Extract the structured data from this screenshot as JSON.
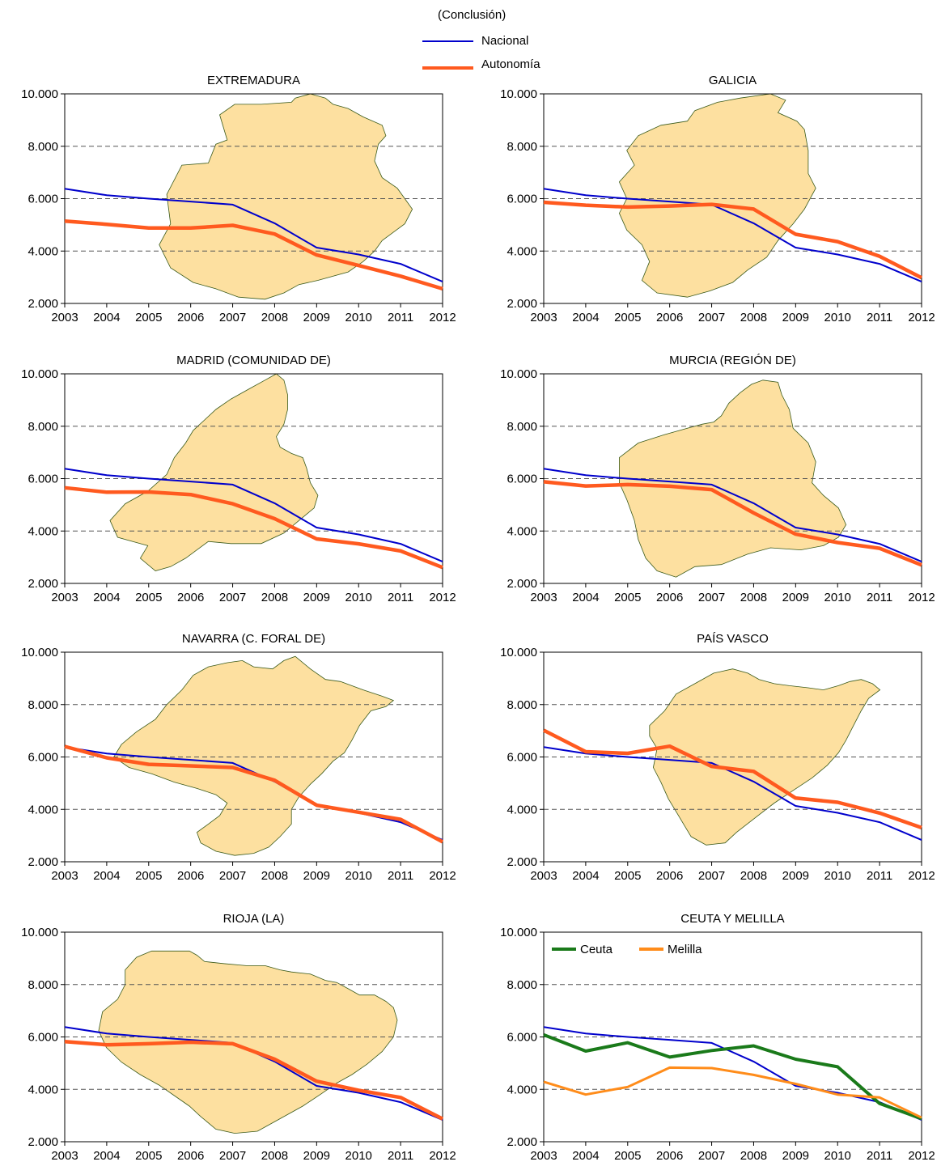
{
  "subtitle": "(Conclusión)",
  "legend": {
    "national_label": "Nacional",
    "regional_label": "Autonomía"
  },
  "colors": {
    "national": "#0000cc",
    "regional": "#ff5a1f",
    "ceuta": "#1a7a1a",
    "melilla": "#ff8c1a",
    "map_fill": "#fde0a0",
    "map_stroke": "#3a5a1a",
    "grid": "#555555"
  },
  "chart_data": [
    {
      "type": "line",
      "title": "EXTREMADURA",
      "categories": [
        "2003",
        "2004",
        "2005",
        "2006",
        "2007",
        "2008",
        "2009",
        "2010",
        "2011",
        "2012"
      ],
      "ylim": [
        2000,
        10000
      ],
      "yticks": [
        "2.000",
        "4.000",
        "6.000",
        "8.000",
        "10.000"
      ],
      "grid": "dashed-horizontal",
      "series": [
        {
          "name": "Nacional",
          "values": [
            6380,
            6130,
            6000,
            5890,
            5770,
            5060,
            4130,
            3870,
            3510,
            2830
          ]
        },
        {
          "name": "Autonomía",
          "values": [
            5140,
            5020,
            4880,
            4880,
            4980,
            4650,
            3850,
            3450,
            3040,
            2560
          ]
        }
      ]
    },
    {
      "type": "line",
      "title": "GALICIA",
      "categories": [
        "2003",
        "2004",
        "2005",
        "2006",
        "2007",
        "2008",
        "2009",
        "2010",
        "2011",
        "2012"
      ],
      "ylim": [
        2000,
        10000
      ],
      "yticks": [
        "2.000",
        "4.000",
        "6.000",
        "8.000",
        "10.000"
      ],
      "grid": "dashed-horizontal",
      "series": [
        {
          "name": "Nacional",
          "values": [
            6380,
            6130,
            6000,
            5890,
            5770,
            5060,
            4130,
            3870,
            3510,
            2830
          ]
        },
        {
          "name": "Autonomía",
          "values": [
            5860,
            5750,
            5680,
            5720,
            5780,
            5600,
            4640,
            4360,
            3800,
            2980
          ]
        }
      ]
    },
    {
      "type": "line",
      "title": "MADRID (COMUNIDAD DE)",
      "categories": [
        "2003",
        "2004",
        "2005",
        "2006",
        "2007",
        "2008",
        "2009",
        "2010",
        "2011",
        "2012"
      ],
      "ylim": [
        2000,
        10000
      ],
      "yticks": [
        "2.000",
        "4.000",
        "6.000",
        "8.000",
        "10.000"
      ],
      "grid": "dashed-horizontal",
      "series": [
        {
          "name": "Nacional",
          "values": [
            6380,
            6130,
            6000,
            5890,
            5770,
            5060,
            4130,
            3870,
            3510,
            2830
          ]
        },
        {
          "name": "Autonomía",
          "values": [
            5650,
            5480,
            5490,
            5390,
            5040,
            4470,
            3700,
            3510,
            3240,
            2610
          ]
        }
      ]
    },
    {
      "type": "line",
      "title": "MURCIA (REGIÓN DE)",
      "categories": [
        "2003",
        "2004",
        "2005",
        "2006",
        "2007",
        "2008",
        "2009",
        "2010",
        "2011",
        "2012"
      ],
      "ylim": [
        2000,
        10000
      ],
      "yticks": [
        "2.000",
        "4.000",
        "6.000",
        "8.000",
        "10.000"
      ],
      "grid": "dashed-horizontal",
      "series": [
        {
          "name": "Nacional",
          "values": [
            6380,
            6130,
            6000,
            5890,
            5770,
            5060,
            4130,
            3870,
            3510,
            2830
          ]
        },
        {
          "name": "Autonomía",
          "values": [
            5880,
            5720,
            5770,
            5710,
            5580,
            4690,
            3880,
            3560,
            3340,
            2700
          ]
        }
      ]
    },
    {
      "type": "line",
      "title": "NAVARRA (C. FORAL DE)",
      "categories": [
        "2003",
        "2004",
        "2005",
        "2006",
        "2007",
        "2008",
        "2009",
        "2010",
        "2011",
        "2012"
      ],
      "ylim": [
        2000,
        10000
      ],
      "yticks": [
        "2.000",
        "4.000",
        "6.000",
        "8.000",
        "10.000"
      ],
      "grid": "dashed-horizontal",
      "series": [
        {
          "name": "Nacional",
          "values": [
            6380,
            6130,
            6000,
            5890,
            5770,
            5060,
            4130,
            3870,
            3510,
            2830
          ]
        },
        {
          "name": "Autonomía",
          "values": [
            6400,
            5970,
            5720,
            5660,
            5600,
            5110,
            4160,
            3890,
            3620,
            2760
          ]
        }
      ]
    },
    {
      "type": "line",
      "title": "PAÍS VASCO",
      "categories": [
        "2003",
        "2004",
        "2005",
        "2006",
        "2007",
        "2008",
        "2009",
        "2010",
        "2011",
        "2012"
      ],
      "ylim": [
        2000,
        10000
      ],
      "yticks": [
        "2.000",
        "4.000",
        "6.000",
        "8.000",
        "10.000"
      ],
      "grid": "dashed-horizontal",
      "series": [
        {
          "name": "Nacional",
          "values": [
            6380,
            6130,
            6000,
            5890,
            5770,
            5060,
            4130,
            3870,
            3510,
            2830
          ]
        },
        {
          "name": "Autonomía",
          "values": [
            7020,
            6200,
            6140,
            6410,
            5640,
            5450,
            4430,
            4270,
            3860,
            3300
          ]
        }
      ]
    },
    {
      "type": "line",
      "title": "RIOJA (LA)",
      "categories": [
        "2003",
        "2004",
        "2005",
        "2006",
        "2007",
        "2008",
        "2009",
        "2010",
        "2011",
        "2012"
      ],
      "ylim": [
        2000,
        10000
      ],
      "yticks": [
        "2.000",
        "4.000",
        "6.000",
        "8.000",
        "10.000"
      ],
      "grid": "dashed-horizontal",
      "series": [
        {
          "name": "Nacional",
          "values": [
            6380,
            6130,
            6000,
            5890,
            5770,
            5060,
            4130,
            3870,
            3510,
            2830
          ]
        },
        {
          "name": "Autonomía",
          "values": [
            5820,
            5700,
            5740,
            5800,
            5740,
            5150,
            4310,
            3960,
            3690,
            2870
          ]
        }
      ]
    },
    {
      "type": "line",
      "title": "CEUTA Y MELILLA",
      "categories": [
        "2003",
        "2004",
        "2005",
        "2006",
        "2007",
        "2008",
        "2009",
        "2010",
        "2011",
        "2012"
      ],
      "ylim": [
        2000,
        10000
      ],
      "yticks": [
        "2.000",
        "4.000",
        "6.000",
        "8.000",
        "10.000"
      ],
      "grid": "dashed-horizontal",
      "legend_position": "top-left",
      "series": [
        {
          "name": "",
          "values": [
            6380,
            6130,
            6000,
            5890,
            5770,
            5060,
            4130,
            3870,
            3510,
            2830
          ]
        },
        {
          "name": "Ceuta",
          "values": [
            6080,
            5460,
            5780,
            5230,
            5480,
            5660,
            5150,
            4860,
            3460,
            2880
          ]
        },
        {
          "name": "Melilla",
          "values": [
            4290,
            3800,
            4090,
            4830,
            4810,
            4550,
            4210,
            3800,
            3690,
            2920
          ]
        }
      ]
    }
  ]
}
